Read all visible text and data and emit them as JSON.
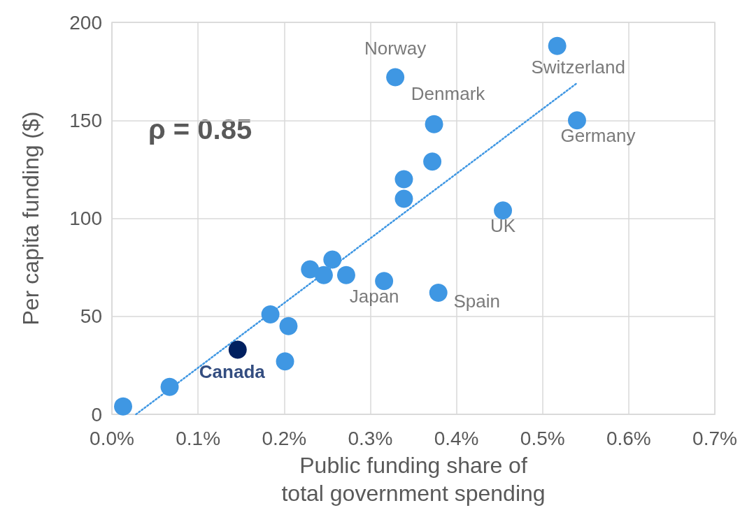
{
  "chart_data": {
    "type": "scatter",
    "xlabel": "Public funding share of total government spending",
    "ylabel": "Per capita funding ($)",
    "xlim": [
      0,
      0.7
    ],
    "xticks": [
      {
        "value": 0,
        "label": "0.0%"
      },
      {
        "value": 0.1,
        "label": "0.1%"
      },
      {
        "value": 0.2,
        "label": "0.2%"
      },
      {
        "value": 0.3,
        "label": "0.3%"
      },
      {
        "value": 0.4,
        "label": "0.4%"
      },
      {
        "value": 0.5,
        "label": "0.5%"
      },
      {
        "value": 0.6,
        "label": "0.6%"
      },
      {
        "value": 0.7,
        "label": "0.7%"
      }
    ],
    "ylim": [
      0,
      200
    ],
    "yticks": [
      0,
      50,
      100,
      150,
      200
    ],
    "grid": true,
    "marker": "circle",
    "series": [
      {
        "type": "scatter",
        "x": [
          0.013,
          0.067,
          0.146,
          0.184,
          0.205,
          0.201,
          0.23,
          0.246,
          0.256,
          0.272,
          0.316,
          0.329,
          0.339,
          0.339,
          0.372,
          0.374,
          0.379,
          0.454,
          0.517,
          0.54
        ],
        "values": [
          4,
          14,
          33,
          51,
          45,
          27,
          74,
          71,
          79,
          71,
          68,
          172,
          120,
          110,
          129,
          148,
          62,
          104,
          188,
          150
        ],
        "colors": [
          "#3f97e3",
          "#3f97e3",
          "#002060",
          "#3f97e3",
          "#3f97e3",
          "#3f97e3",
          "#3f97e3",
          "#3f97e3",
          "#3f97e3",
          "#3f97e3",
          "#3f97e3",
          "#3f97e3",
          "#3f97e3",
          "#3f97e3",
          "#3f97e3",
          "#3f97e3",
          "#3f97e3",
          "#3f97e3",
          "#3f97e3",
          "#3f97e3"
        ]
      },
      {
        "type": "line",
        "color": "#3f97e3",
        "line_style": "dotted",
        "marker": "none",
        "x": [
          0.028,
          0.54
        ],
        "values": [
          0,
          169
        ]
      }
    ],
    "annotations": [
      {
        "text": "Norway",
        "x": 0.329,
        "y": 172
      },
      {
        "text": "Switzerland",
        "x": 0.517,
        "y": 188
      },
      {
        "text": "Denmark",
        "x": 0.374,
        "y": 148
      },
      {
        "text": "Germany",
        "x": 0.54,
        "y": 150
      },
      {
        "text": "UK",
        "x": 0.454,
        "y": 104
      },
      {
        "text": "Japan",
        "x": 0.316,
        "y": 68
      },
      {
        "text": "Spain",
        "x": 0.379,
        "y": 62
      },
      {
        "text": "Canada",
        "x": 0.146,
        "y": 33
      },
      "ρ = 0.85"
    ]
  }
}
